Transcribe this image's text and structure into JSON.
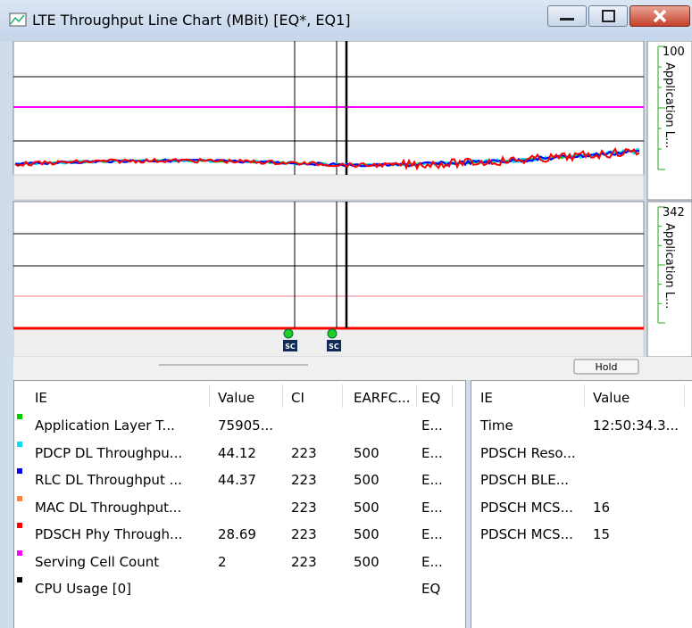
{
  "window": {
    "title": "LTE Throughput Line Chart (MBit) [EQ*, EQ1]"
  },
  "chart_top": {
    "axis_max": "100",
    "axis_label": "Application L..."
  },
  "chart_bottom": {
    "axis_max": "342",
    "axis_label": "Application L..."
  },
  "markers": [
    "SC",
    "SC"
  ],
  "hold_button": "Hold",
  "left_table": {
    "columns": [
      "IE",
      "Value",
      "CI",
      "EARFC...",
      "EQ"
    ],
    "rows": [
      {
        "color": "#00d000",
        "ie": "Application Layer T...",
        "value": "75905...",
        "eq": "E..."
      },
      {
        "color": "#00e0f0",
        "ie": "PDCP DL Throughpu...",
        "value": "44.12",
        "ci": "223",
        "earfcn": "500",
        "eq": "E..."
      },
      {
        "color": "#0000ff",
        "ie": "RLC DL Throughput ...",
        "value": "44.37",
        "ci": "223",
        "earfcn": "500",
        "eq": "E..."
      },
      {
        "color": "#ff7f3f",
        "ie": "MAC DL Throughput...",
        "ci": "223",
        "earfcn": "500",
        "eq": "E..."
      },
      {
        "color": "#ff0000",
        "ie": "PDSCH Phy Through...",
        "value": "28.69",
        "ci": "223",
        "earfcn": "500",
        "eq": "E..."
      },
      {
        "color": "#ff00ff",
        "ie": "Serving Cell Count",
        "value": "2",
        "ci": "223",
        "earfcn": "500",
        "eq": "E..."
      },
      {
        "color": "#000000",
        "ie": "CPU Usage [0]",
        "eq": "EQ"
      }
    ]
  },
  "right_table": {
    "columns": [
      "IE",
      "Value"
    ],
    "rows": [
      {
        "ie": "Time",
        "value": "12:50:34.3..."
      },
      {
        "ie": "PDSCH Reso..."
      },
      {
        "ie": "PDSCH BLE..."
      },
      {
        "ie": "PDSCH MCS...",
        "value": "16"
      },
      {
        "ie": "PDSCH MCS...",
        "value": "15"
      }
    ]
  }
}
